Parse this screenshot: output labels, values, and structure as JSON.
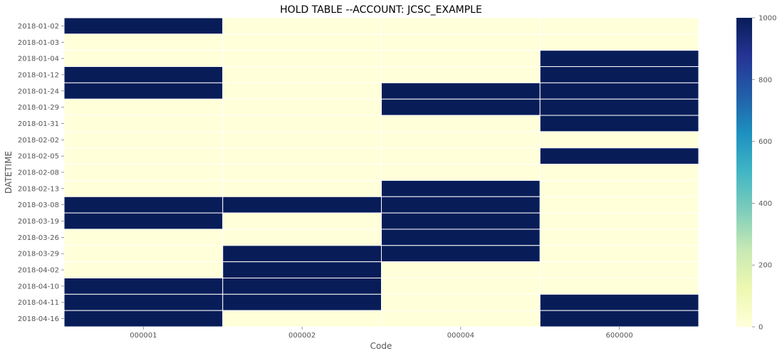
{
  "chart_data": {
    "type": "heatmap",
    "title": "HOLD TABLE --ACCOUNT: JCSC_EXAMPLE",
    "xlabel": "Code",
    "ylabel": "DATETIME",
    "x_categories": [
      "000001",
      "000002",
      "000004",
      "600000"
    ],
    "y_categories": [
      "2018-01-02",
      "2018-01-03",
      "2018-01-04",
      "2018-01-12",
      "2018-01-24",
      "2018-01-29",
      "2018-01-31",
      "2018-02-02",
      "2018-02-05",
      "2018-02-08",
      "2018-02-13",
      "2018-03-08",
      "2018-03-19",
      "2018-03-26",
      "2018-03-29",
      "2018-04-02",
      "2018-04-10",
      "2018-04-11",
      "2018-04-16"
    ],
    "values": [
      [
        1000,
        0,
        0,
        0
      ],
      [
        0,
        0,
        0,
        0
      ],
      [
        0,
        0,
        0,
        1000
      ],
      [
        1000,
        0,
        0,
        1000
      ],
      [
        1000,
        0,
        1000,
        1000
      ],
      [
        0,
        0,
        1000,
        1000
      ],
      [
        0,
        0,
        0,
        1000
      ],
      [
        0,
        0,
        0,
        0
      ],
      [
        0,
        0,
        0,
        1000
      ],
      [
        0,
        0,
        0,
        0
      ],
      [
        0,
        0,
        1000,
        0
      ],
      [
        1000,
        1000,
        1000,
        0
      ],
      [
        1000,
        0,
        1000,
        0
      ],
      [
        0,
        0,
        1000,
        0
      ],
      [
        0,
        1000,
        1000,
        0
      ],
      [
        0,
        1000,
        0,
        0
      ],
      [
        1000,
        1000,
        0,
        0
      ],
      [
        1000,
        1000,
        0,
        1000
      ],
      [
        1000,
        0,
        0,
        1000
      ]
    ],
    "vmin": 0,
    "vmax": 1000,
    "colorbar_ticks": [
      0,
      200,
      400,
      600,
      800,
      1000
    ],
    "colormap": "YlGnBu",
    "colormap_stops": [
      "#ffffd9",
      "#edf8b1",
      "#c7e9b4",
      "#7fcdbb",
      "#41b6c4",
      "#1d91c0",
      "#225ea8",
      "#253494",
      "#081d58"
    ],
    "legend": "colorbar-right"
  }
}
